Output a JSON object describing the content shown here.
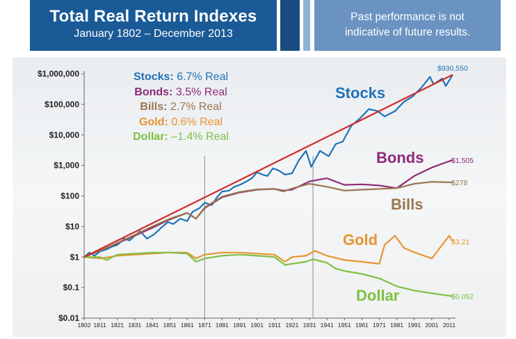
{
  "header": {
    "title": "Total Real Return Indexes",
    "subtitle": "January 1802 – December 2013",
    "disclaimer_line1": "Past performance is not",
    "disclaimer_line2": "indicative of future results."
  },
  "legend": [
    {
      "name": "Stocks:",
      "rate": "6.7% Real",
      "color": "#1f72b6"
    },
    {
      "name": "Bonds:",
      "rate": "3.5% Real",
      "color": "#8e2a78"
    },
    {
      "name": "Bills:",
      "rate": "2.7% Real",
      "color": "#9a7650"
    },
    {
      "name": "Gold:",
      "rate": "0.6% Real",
      "color": "#e8952f"
    },
    {
      "name": "Dollar:",
      "rate": "–1.4% Real",
      "color": "#7ec142"
    }
  ],
  "chart_data": {
    "type": "line",
    "title": "Total Real Return Indexes",
    "subtitle": "January 1802 – December 2013",
    "y_scale": "log",
    "ylim": [
      0.01,
      1000000
    ],
    "xlim": [
      1802,
      2013
    ],
    "y_ticks": [
      0.01,
      0.1,
      1,
      10,
      100,
      1000,
      10000,
      100000,
      1000000
    ],
    "y_tick_labels": [
      "$0.01",
      "$0.1",
      "$1",
      "$10",
      "$100",
      "$1,000",
      "$10,000",
      "$100,000",
      "$1,000,000"
    ],
    "x_ticks": [
      1802,
      1811,
      1821,
      1831,
      1841,
      1851,
      1861,
      1871,
      1881,
      1891,
      1901,
      1911,
      1921,
      1931,
      1941,
      1951,
      1961,
      1971,
      1981,
      1991,
      2001,
      2011
    ],
    "x_tick_labels": [
      "1802",
      "1811",
      "1821",
      "1831",
      "1841",
      "1851",
      "1861",
      "1871",
      "1881",
      "1891",
      "1901",
      "1911",
      "1921",
      "1931",
      "1941",
      "1951",
      "1961",
      "1971",
      "1981",
      "1991",
      "2001",
      "2011"
    ],
    "vertical_lines": [
      1871,
      1933
    ],
    "trend_line": {
      "color": "#d42a2a",
      "x": [
        1802,
        2013
      ],
      "y": [
        1,
        930550
      ]
    },
    "series": [
      {
        "name": "Stocks",
        "color": "#1f72b6",
        "end_label": "$930,550",
        "x": [
          1802,
          1805,
          1808,
          1811,
          1815,
          1818,
          1821,
          1825,
          1828,
          1831,
          1834,
          1838,
          1842,
          1846,
          1850,
          1853,
          1857,
          1861,
          1864,
          1868,
          1871,
          1875,
          1878,
          1881,
          1885,
          1888,
          1891,
          1895,
          1898,
          1901,
          1904,
          1907,
          1910,
          1913,
          1917,
          1921,
          1925,
          1929,
          1932,
          1937,
          1942,
          1946,
          1950,
          1955,
          1960,
          1965,
          1970,
          1974,
          1980,
          1985,
          1990,
          1995,
          2000,
          2002,
          2007,
          2009,
          2013
        ],
        "y": [
          1,
          1.4,
          1.1,
          1.5,
          1.8,
          2.2,
          2.5,
          4,
          3.5,
          5,
          7,
          4,
          5.5,
          9,
          14,
          12,
          18,
          15,
          30,
          40,
          60,
          50,
          90,
          140,
          150,
          200,
          230,
          300,
          380,
          600,
          500,
          450,
          800,
          700,
          500,
          550,
          1500,
          3000,
          900,
          3000,
          2000,
          5000,
          6000,
          20000,
          35000,
          70000,
          60000,
          40000,
          60000,
          120000,
          180000,
          350000,
          800000,
          450000,
          700000,
          400000,
          930550
        ]
      },
      {
        "name": "Bonds",
        "color": "#8e2a78",
        "end_label": "$1,505",
        "x": [
          1802,
          1811,
          1821,
          1831,
          1841,
          1851,
          1861,
          1866,
          1871,
          1881,
          1891,
          1901,
          1911,
          1916,
          1921,
          1931,
          1941,
          1951,
          1961,
          1971,
          1981,
          1991,
          2001,
          2013
        ],
        "y": [
          1,
          1.6,
          2.8,
          5,
          9,
          17,
          28,
          18,
          40,
          90,
          130,
          160,
          170,
          150,
          160,
          300,
          380,
          230,
          240,
          220,
          180,
          450,
          850,
          1505
        ]
      },
      {
        "name": "Bills",
        "color": "#9a7650",
        "end_label": "$278",
        "x": [
          1802,
          1811,
          1821,
          1831,
          1841,
          1851,
          1861,
          1866,
          1871,
          1881,
          1891,
          1901,
          1911,
          1916,
          1921,
          1931,
          1941,
          1951,
          1961,
          1971,
          1981,
          1991,
          2001,
          2013
        ],
        "y": [
          1,
          1.6,
          2.9,
          5.3,
          10,
          18,
          28,
          18,
          42,
          95,
          135,
          165,
          170,
          140,
          175,
          250,
          200,
          150,
          160,
          170,
          180,
          250,
          290,
          278
        ]
      },
      {
        "name": "Gold",
        "color": "#e8952f",
        "end_label": "$3.21",
        "x": [
          1802,
          1811,
          1821,
          1831,
          1841,
          1851,
          1861,
          1866,
          1871,
          1881,
          1891,
          1901,
          1911,
          1917,
          1921,
          1929,
          1934,
          1941,
          1951,
          1961,
          1971,
          1974,
          1980,
          1985,
          1990,
          2001,
          2011,
          2013
        ],
        "y": [
          1,
          0.9,
          1.1,
          1.2,
          1.3,
          1.4,
          1.4,
          0.9,
          1.2,
          1.4,
          1.4,
          1.3,
          1.2,
          0.7,
          1.0,
          1.1,
          1.6,
          1.1,
          0.8,
          0.7,
          0.6,
          2.5,
          5,
          2.0,
          1.5,
          0.9,
          5,
          3.21
        ]
      },
      {
        "name": "Dollar",
        "color": "#7ec142",
        "end_label": "$0.052",
        "x": [
          1802,
          1811,
          1815,
          1821,
          1831,
          1841,
          1851,
          1861,
          1866,
          1871,
          1881,
          1891,
          1901,
          1911,
          1917,
          1921,
          1929,
          1933,
          1941,
          1946,
          1951,
          1961,
          1971,
          1981,
          1991,
          2001,
          2013
        ],
        "y": [
          1,
          1.0,
          0.8,
          1.2,
          1.3,
          1.4,
          1.4,
          1.3,
          0.7,
          0.9,
          1.1,
          1.2,
          1.1,
          1.0,
          0.55,
          0.6,
          0.7,
          0.85,
          0.65,
          0.42,
          0.35,
          0.28,
          0.2,
          0.11,
          0.08,
          0.065,
          0.052
        ]
      }
    ]
  }
}
